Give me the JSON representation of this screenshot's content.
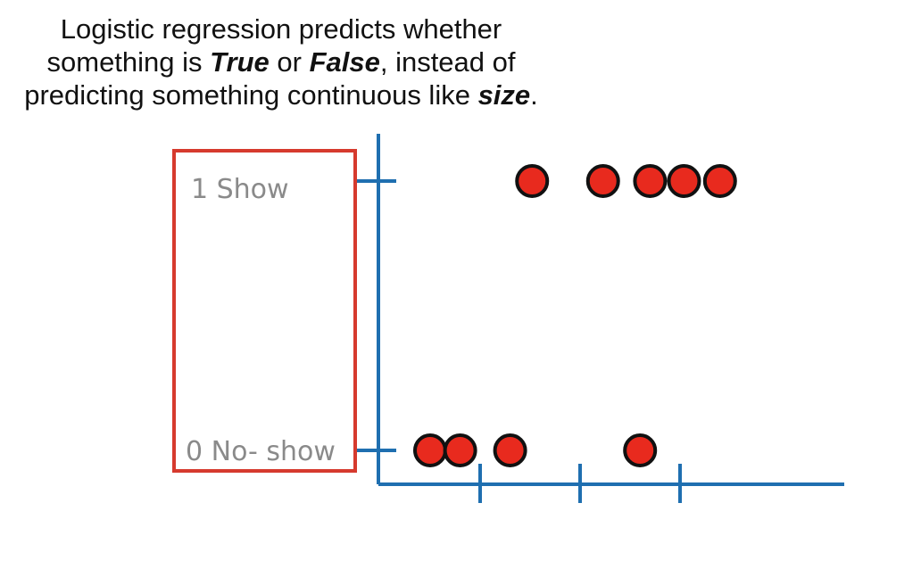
{
  "caption": {
    "line1": "Logistic regression predicts whether",
    "line2_a": "something is ",
    "line2_b": "True",
    "line2_c": " or ",
    "line2_d": "False",
    "line2_e": ", instead of",
    "line3_a": "predicting something continuous like ",
    "line3_b": "size",
    "line3_c": "."
  },
  "labels": {
    "top": "1 Show",
    "bottom": "0 No- show"
  },
  "colors": {
    "axis": "#1f6fb0",
    "box": "#d63a2e",
    "point_fill": "#e82a1e",
    "point_stroke": "#111111"
  },
  "chart_data": {
    "type": "scatter",
    "y_categories": [
      "0 No- show",
      "1 Show"
    ],
    "points": [
      {
        "x": 0.52,
        "y": 1
      },
      {
        "x": 1.23,
        "y": 1
      },
      {
        "x": 1.7,
        "y": 1
      },
      {
        "x": 2.04,
        "y": 1
      },
      {
        "x": 2.4,
        "y": 1
      },
      {
        "x": -0.5,
        "y": 0
      },
      {
        "x": -0.2,
        "y": 0
      },
      {
        "x": 0.3,
        "y": 0
      },
      {
        "x": 1.6,
        "y": 0
      }
    ],
    "x_ticks": [
      0,
      1,
      2
    ]
  }
}
